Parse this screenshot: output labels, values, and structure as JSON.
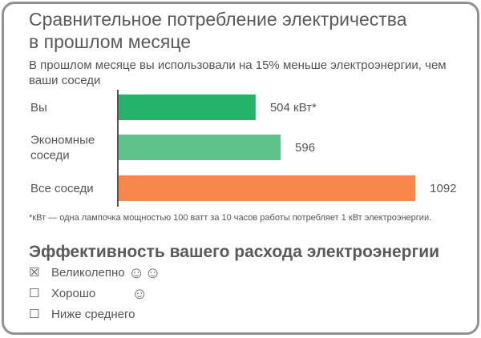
{
  "title_line1": "Сравнительное потребление электричества",
  "title_line2": "в прошлом месяце",
  "subtitle": "В прошлом месяце вы использовали на 15% меньше электроэнергии, чем ваши соседи",
  "chart_data": {
    "type": "bar",
    "orientation": "horizontal",
    "categories": [
      "Вы",
      "Экономные соседи",
      "Все соседи"
    ],
    "category_lines": [
      [
        "Вы"
      ],
      [
        "Экономные",
        "соседи"
      ],
      [
        "Все соседи"
      ]
    ],
    "values": [
      504,
      596,
      1092
    ],
    "value_labels": [
      "504 кВт*",
      "596",
      "1092"
    ],
    "colors": [
      "#25b26b",
      "#5dc38b",
      "#f7874b"
    ],
    "xlim": [
      0,
      1180
    ],
    "grid": false
  },
  "footnote": "*кВт — одна лампочка мощностью 100 ватт за 10 часов работы потребляет 1 кВт электроэнергии.",
  "efficiency": {
    "title": "Эффективность вашего расхода электроэнергии",
    "ratings": [
      {
        "checked": true,
        "box": "☒",
        "label": "Великолепно",
        "smileys": "☺☺"
      },
      {
        "checked": false,
        "box": "☐",
        "label": "Хорошо",
        "smileys": "☺"
      },
      {
        "checked": false,
        "box": "☐",
        "label": "Ниже среднего",
        "smileys": ""
      }
    ]
  }
}
